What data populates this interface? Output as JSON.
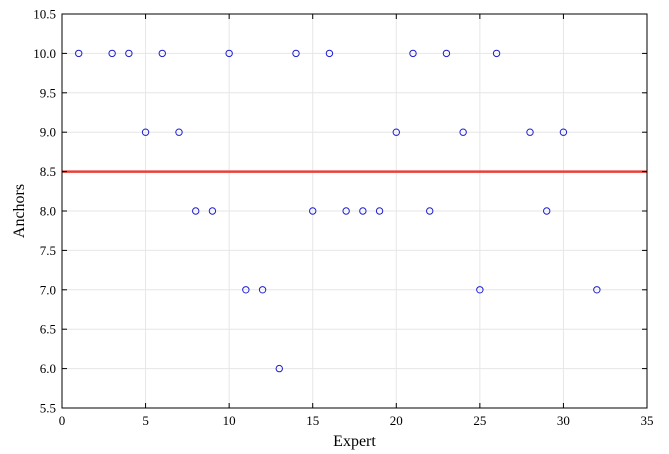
{
  "chart_data": {
    "type": "scatter",
    "title": "",
    "xlabel": "Expert",
    "ylabel": "Anchors",
    "xlim": [
      0,
      35
    ],
    "ylim": [
      5.5,
      10.5
    ],
    "x_ticks": [
      0,
      5,
      10,
      15,
      20,
      25,
      30,
      35
    ],
    "y_ticks": [
      "5.5",
      "6.0",
      "6.5",
      "7.0",
      "7.5",
      "8.0",
      "8.5",
      "9.0",
      "9.5",
      "10.0",
      "10.5"
    ],
    "grid": true,
    "marker": "open-circle",
    "series": [
      {
        "color": "#1f1fd1",
        "points": [
          {
            "x": 1,
            "y": 10
          },
          {
            "x": 3,
            "y": 10
          },
          {
            "x": 4,
            "y": 10
          },
          {
            "x": 5,
            "y": 9
          },
          {
            "x": 6,
            "y": 10
          },
          {
            "x": 7,
            "y": 9
          },
          {
            "x": 8,
            "y": 8
          },
          {
            "x": 9,
            "y": 8
          },
          {
            "x": 10,
            "y": 10
          },
          {
            "x": 11,
            "y": 7
          },
          {
            "x": 12,
            "y": 7
          },
          {
            "x": 13,
            "y": 6
          },
          {
            "x": 14,
            "y": 10
          },
          {
            "x": 15,
            "y": 8
          },
          {
            "x": 16,
            "y": 10
          },
          {
            "x": 17,
            "y": 8
          },
          {
            "x": 18,
            "y": 8
          },
          {
            "x": 19,
            "y": 8
          },
          {
            "x": 20,
            "y": 9
          },
          {
            "x": 21,
            "y": 10
          },
          {
            "x": 22,
            "y": 8
          },
          {
            "x": 23,
            "y": 10
          },
          {
            "x": 24,
            "y": 9
          },
          {
            "x": 25,
            "y": 7
          },
          {
            "x": 26,
            "y": 10
          },
          {
            "x": 28,
            "y": 9
          },
          {
            "x": 29,
            "y": 8
          },
          {
            "x": 30,
            "y": 9
          },
          {
            "x": 32,
            "y": 7
          }
        ]
      }
    ],
    "reference_line": {
      "y": 8.5,
      "color": "#e8413a"
    }
  }
}
